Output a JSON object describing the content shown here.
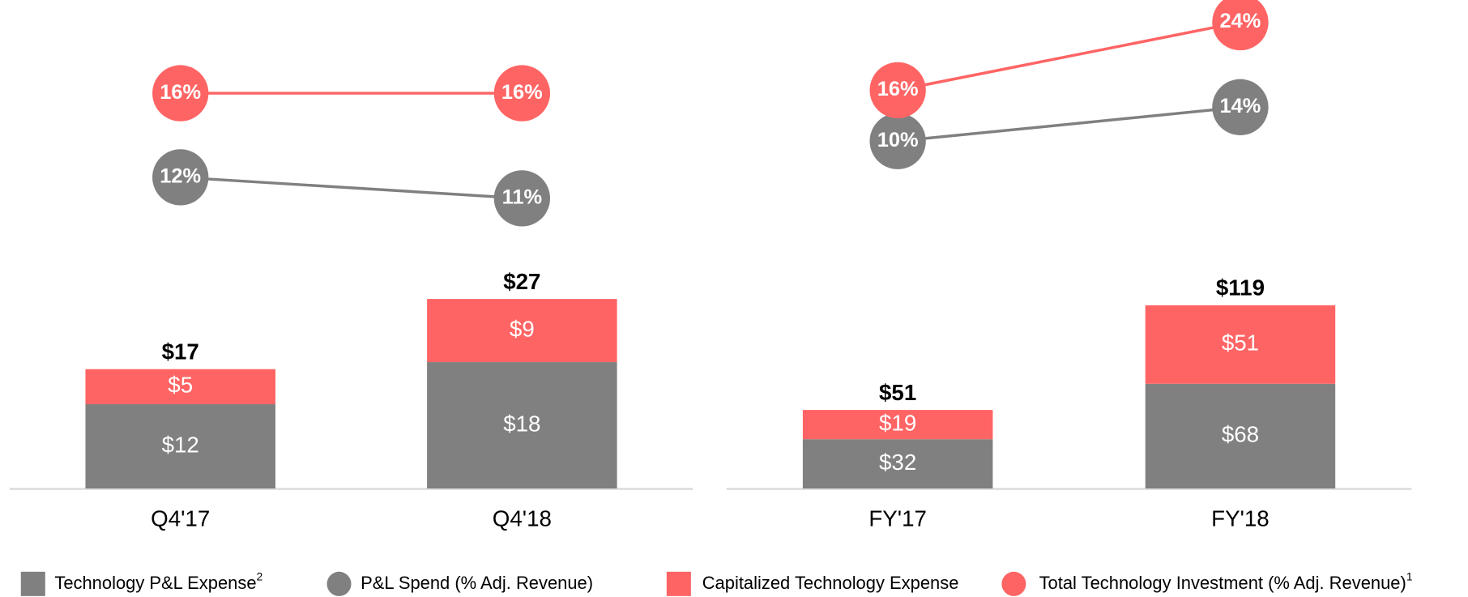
{
  "chart_data": [
    {
      "type": "bar",
      "categories": [
        "Q4'17",
        "Q4'18"
      ],
      "ylim": [
        0,
        68
      ],
      "y2lim": [
        -2.8,
        19.9
      ],
      "series": [
        {
          "name": "Technology P&L Expense",
          "note": "2",
          "type": "bar",
          "color": "#808080",
          "values": [
            12,
            18
          ],
          "value_labels": [
            "$12",
            "$18"
          ]
        },
        {
          "name": "Capitalized Technology Expense",
          "type": "bar",
          "color": "#ff6464",
          "values": [
            5,
            9
          ],
          "value_labels": [
            "$5",
            "$9"
          ]
        },
        {
          "name": "P&L Spend (% Adj. Revenue)",
          "type": "line",
          "axis": "y2",
          "color": "#808080",
          "values": [
            12,
            11
          ],
          "value_labels": [
            "12%",
            "11%"
          ]
        },
        {
          "name": "Total Technology Investment (% Adj. Revenue)",
          "note": "1",
          "type": "line",
          "axis": "y2",
          "color": "#ff6464",
          "values": [
            16,
            16
          ],
          "value_labels": [
            "16%",
            "16%"
          ]
        }
      ],
      "totals": {
        "values": [
          17,
          27
        ],
        "value_labels": [
          "$17",
          "$27"
        ]
      }
    },
    {
      "type": "bar",
      "categories": [
        "FY'17",
        "FY'18"
      ],
      "ylim": [
        0,
        310
      ],
      "y2lim": [
        -30.9,
        25.3
      ],
      "series": [
        {
          "type": "bar",
          "color": "#808080",
          "values": [
            32,
            68
          ],
          "value_labels": [
            "$32",
            "$68"
          ]
        },
        {
          "type": "bar",
          "color": "#ff6464",
          "values": [
            19,
            51
          ],
          "value_labels": [
            "$19",
            "$51"
          ]
        },
        {
          "type": "line",
          "axis": "y2",
          "color": "#808080",
          "values": [
            10,
            14
          ],
          "value_labels": [
            "10%",
            "14%"
          ]
        },
        {
          "type": "line",
          "axis": "y2",
          "color": "#ff6464",
          "values": [
            16,
            24
          ],
          "value_labels": [
            "16%",
            "24%"
          ]
        }
      ],
      "totals": {
        "values": [
          51,
          119
        ],
        "value_labels": [
          "$51",
          "$119"
        ]
      }
    }
  ]
}
